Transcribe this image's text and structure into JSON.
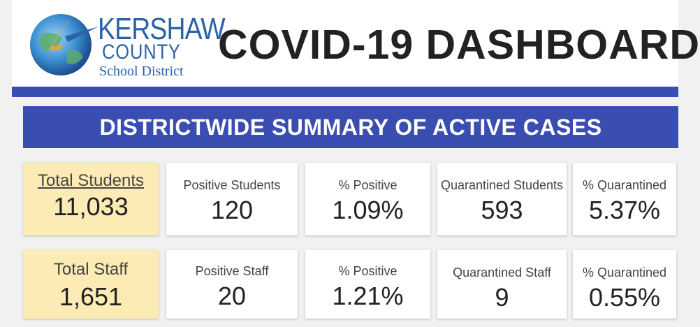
{
  "header": {
    "logo": {
      "line1": "KERSHAW",
      "line2": "COUNTY",
      "line3": "School District"
    },
    "title": "COVID-19 DASHBOARD"
  },
  "banner": "DISTRICTWIDE SUMMARY OF ACTIVE CASES",
  "students": [
    {
      "label": "Total Students",
      "value": "11,033"
    },
    {
      "label": "Positive Students",
      "value": "120"
    },
    {
      "label": "% Positive",
      "value": "1.09%"
    },
    {
      "label": "Quarantined Students",
      "value": "593"
    },
    {
      "label": "% Quarantined",
      "value": "5.37%"
    }
  ],
  "staff": [
    {
      "label": "Total Staff",
      "value": "1,651"
    },
    {
      "label": "Positive Staff",
      "value": "20"
    },
    {
      "label": "% Positive",
      "value": "1.21%"
    },
    {
      "label": "Quarantined Staff",
      "value": "9"
    },
    {
      "label": "% Quarantined",
      "value": "0.55%"
    }
  ],
  "colors": {
    "accent": "#3a4db0",
    "highlight": "#fdebb5",
    "link": "#1a5fb4",
    "logo": "#2b63a6"
  }
}
